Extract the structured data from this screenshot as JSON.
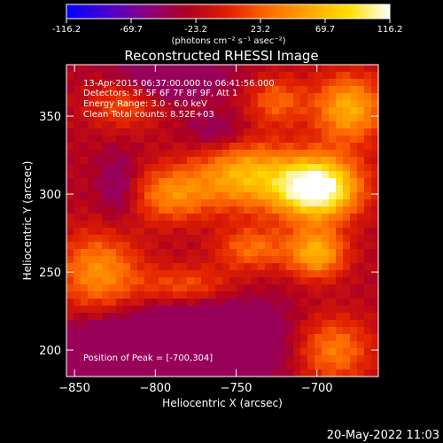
{
  "chart_data": {
    "type": "heatmap",
    "title": "Reconstructed RHESSI Image",
    "xlabel": "Heliocentric X (arcsec)",
    "ylabel": "Heliocentric Y (arcsec)",
    "xlim": [
      -855,
      -662
    ],
    "ylim": [
      183,
      383
    ],
    "xticks": [
      -850,
      -800,
      -750,
      -700
    ],
    "yticks": [
      200,
      250,
      300,
      350
    ],
    "colorbar": {
      "ticks": [
        -116.2,
        -69.7,
        -23.2,
        23.2,
        69.7,
        116.2
      ],
      "range": [
        -116.2,
        116.2
      ],
      "unit_label": "(photons cm⁻² s⁻¹ asec⁻²)",
      "colormap": [
        "#0000ff",
        "#4a00d0",
        "#8a0080",
        "#b00020",
        "#e02000",
        "#ff6a00",
        "#ffa500",
        "#ffe000",
        "#ffffff"
      ]
    },
    "annotations": [
      "13-Apr-2015 06:37:00.000 to 06:41:56.000",
      "Detectors: 3F 5F 6F 7F 8F 9F, Att 1",
      "Energy Range: 3.0 - 6.0 keV",
      "Clean     Total counts: 8.52E+03"
    ],
    "peak_label": "Position of Peak = [-700,304]",
    "peak": [
      -700,
      304
    ],
    "grid": false
  },
  "footer_timestamp": "20-May-2022 11:03"
}
